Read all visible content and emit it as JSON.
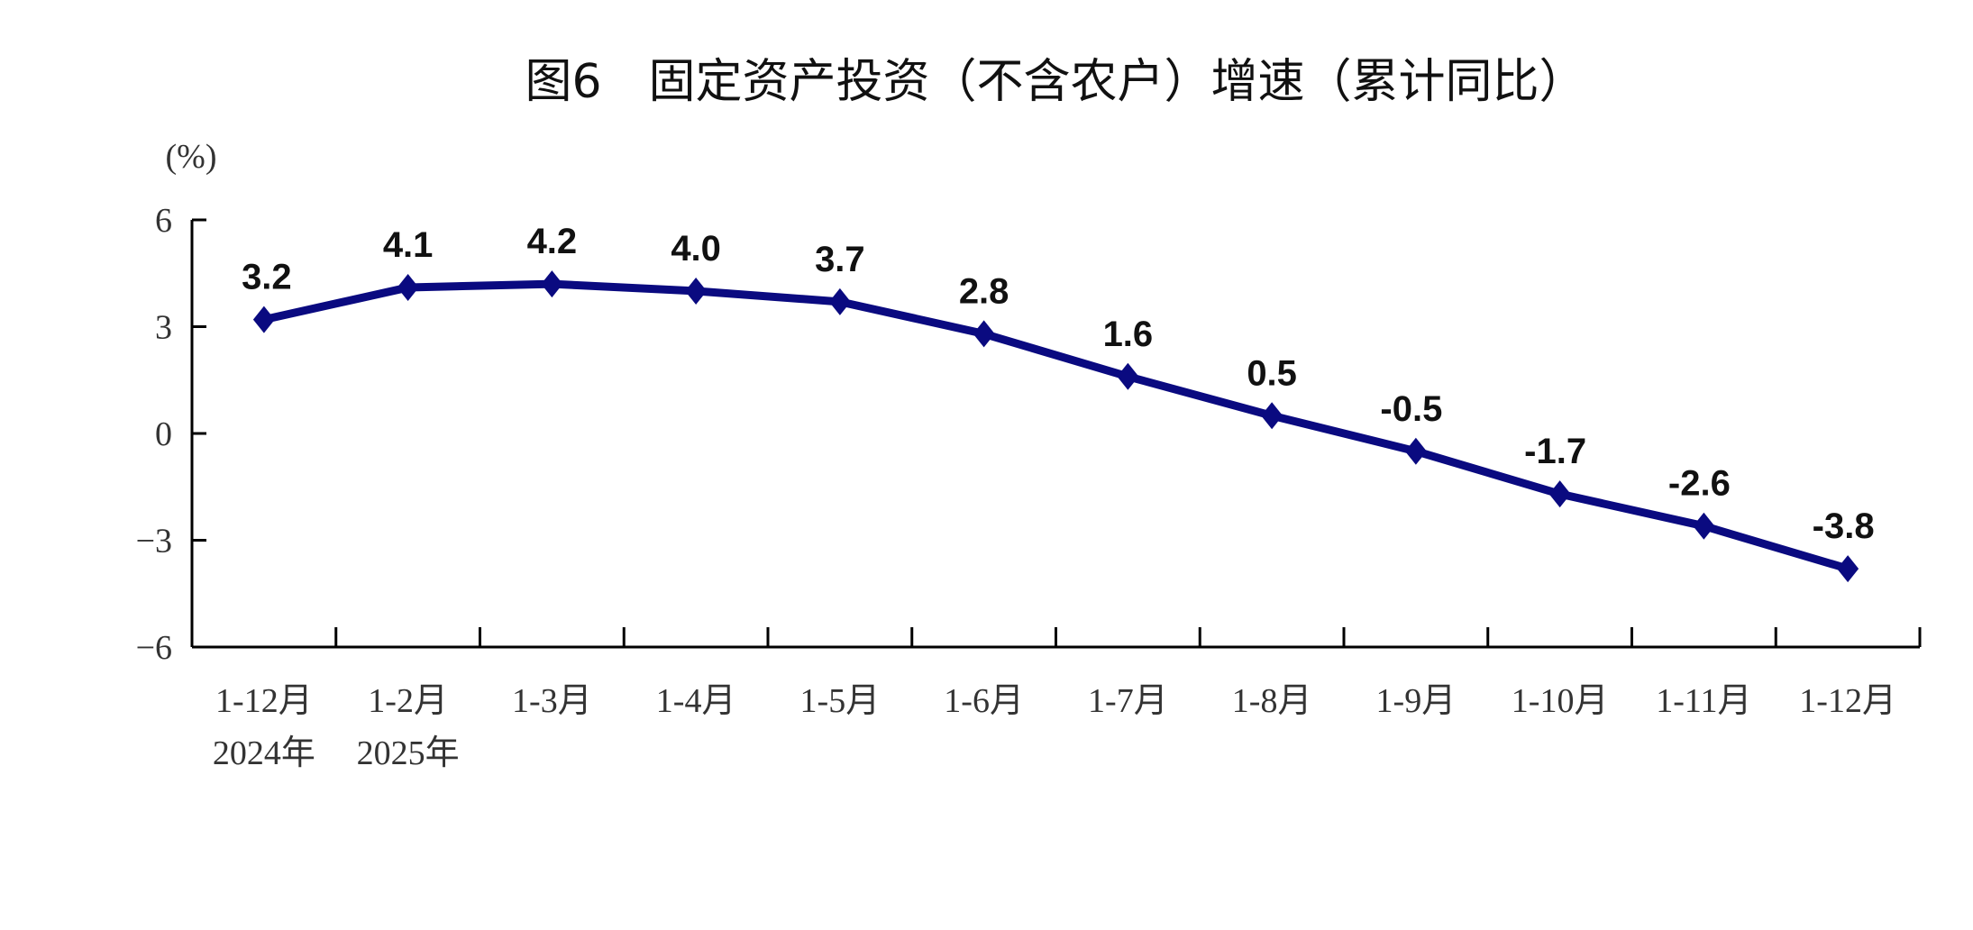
{
  "chart_data": {
    "type": "line",
    "title": "图6　固定资产投资（不含农户）增速（累计同比）",
    "ylabel": "(%)",
    "ylim": [
      -6,
      6
    ],
    "yticks": [
      6,
      3,
      0,
      -3,
      -6
    ],
    "ytick_labels": [
      "6",
      "3",
      "0",
      "−3",
      "−6"
    ],
    "categories": [
      "1-12月",
      "1-2月",
      "1-3月",
      "1-4月",
      "1-5月",
      "1-6月",
      "1-7月",
      "1-8月",
      "1-9月",
      "1-10月",
      "1-11月",
      "1-12月"
    ],
    "year_labels": [
      "2024年",
      "2025年"
    ],
    "values": [
      3.2,
      4.1,
      4.2,
      4.0,
      3.7,
      2.8,
      1.6,
      0.5,
      -0.5,
      -1.7,
      -2.6,
      -3.8
    ],
    "data_labels": [
      "3.2",
      "4.1",
      "4.2",
      "4.0",
      "3.7",
      "2.8",
      "1.6",
      "0.5",
      "-0.5",
      "-1.7",
      "-2.6",
      "-3.8"
    ],
    "line_color": "#0a0a80",
    "marker": "diamond",
    "grid": false,
    "legend": "none"
  }
}
